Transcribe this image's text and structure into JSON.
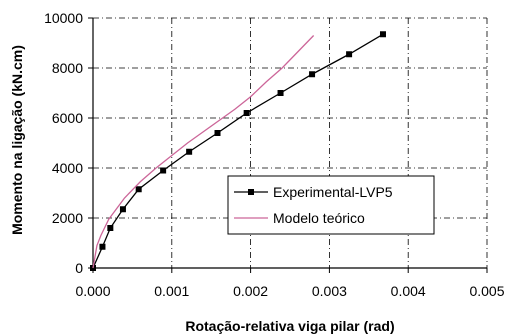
{
  "chart_data": {
    "type": "line",
    "title": "",
    "xlabel": "Rotação-relativa viga pilar (rad)",
    "ylabel": "Momento na ligação (kN.cm)",
    "xlim": [
      0,
      0.005
    ],
    "ylim": [
      0,
      10000
    ],
    "x_ticks": [
      0,
      0.001,
      0.002,
      0.003,
      0.004,
      0.005
    ],
    "x_tick_labels": [
      "0.000",
      "0.001",
      "0.002",
      "0.003",
      "0.004",
      "0.005"
    ],
    "y_ticks": [
      0,
      2000,
      4000,
      6000,
      8000,
      10000
    ],
    "y_tick_labels": [
      "0",
      "2000",
      "4000",
      "6000",
      "8000",
      "10000"
    ],
    "grid": true,
    "grid_style": "dash-dot",
    "legend_position": "center-right",
    "series": [
      {
        "name": "Experimental-LVP5",
        "color": "#000000",
        "marker": "square",
        "x": [
          0,
          0.00012,
          0.00022,
          0.00038,
          0.00058,
          0.00089,
          0.00122,
          0.00158,
          0.00195,
          0.00238,
          0.00278,
          0.00325,
          0.00368
        ],
        "y": [
          0,
          850,
          1600,
          2350,
          3150,
          3900,
          4650,
          5400,
          6200,
          7000,
          7750,
          8550,
          9350
        ]
      },
      {
        "name": "Modelo teórico",
        "color": "#cc6699",
        "marker": "none",
        "x": [
          0,
          5e-05,
          0.0001,
          0.0002,
          0.0004,
          0.0006,
          0.0008,
          0.001,
          0.0012,
          0.0014,
          0.0016,
          0.0018,
          0.002,
          0.0022,
          0.0024,
          0.0026,
          0.0028
        ],
        "y": [
          0,
          900,
          1300,
          1950,
          2800,
          3450,
          4000,
          4500,
          5000,
          5450,
          5900,
          6350,
          6850,
          7450,
          8000,
          8650,
          9300
        ]
      }
    ]
  }
}
